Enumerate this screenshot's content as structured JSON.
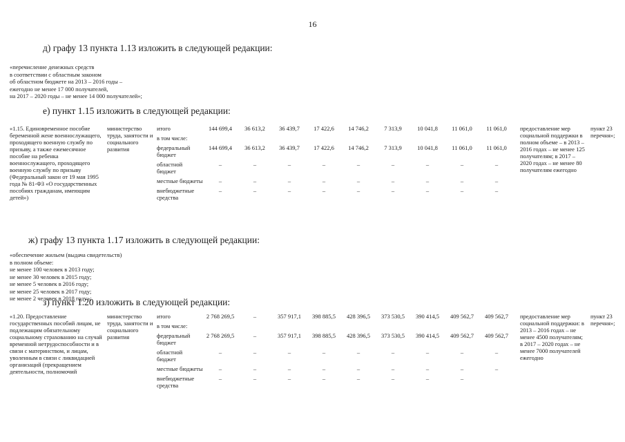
{
  "page_number": "16",
  "headings": {
    "d": "д)  графу 13 пункта 1.13 изложить в следующей редакции:",
    "e": "е)  пункт 1.15 изложить в следующей редакции:",
    "zh": "ж) графу 13 пункта 1.17 изложить в следующей редакции:",
    "z": "з)  пункт 1.20 изложить в следующей редакции:"
  },
  "block_d": {
    "lines": [
      "«перечисление денежных средств",
      "в соответствии с областным законом",
      "об областном бюджете на 2013 – 2016  годы –",
      "ежегодно не менее 17 000 получателей,",
      "на 2017 – 2020 годы – не менее 14 000 получателей»;"
    ]
  },
  "block_zh": {
    "lines": [
      "«обеспечение жильем (выдача свидетельств)",
      "в полном объеме:",
      "не менее 100 человек в 2013 году;",
      "не менее 30 человек в 2015 году;",
      "не менее 5 человек в 2016 году;",
      "не менее 25 человек в 2017 году;",
      "не менее 2 человек в 2018 году»;"
    ]
  },
  "table_1_15": {
    "item": "«1.15. Единовременное пособие беременной жене военнослужащего, проходящего военную службу по призыву, а также ежемесячное пособие на ребенка военнослужащего, проходящего военную службу по призыву (Федеральный закон от 19 мая 1995 года № 81-ФЗ «О государственных пособиях гражданам, имеющим детей»)",
    "ministry": "министерство труда, занятости и социального развития",
    "rows": [
      {
        "label": "итого",
        "values": [
          "144 699,4",
          "36 613,2",
          "36 439,7",
          "17 422,6",
          "14 746,2",
          "7 313,9",
          "10 041,8",
          "11 061,0",
          "11 061,0"
        ]
      },
      {
        "label": "в том числе:",
        "values": []
      },
      {
        "label": "федеральный бюджет",
        "values": [
          "144 699,4",
          "36 613,2",
          "36 439,7",
          "17 422,6",
          "14 746,2",
          "7 313,9",
          "10 041,8",
          "11 061,0",
          "11 061,0"
        ]
      },
      {
        "label": "областной бюджет",
        "values": [
          "–",
          "–",
          "–",
          "–",
          "–",
          "–",
          "–",
          "–",
          "–"
        ]
      },
      {
        "label": "местные бюджеты",
        "values": [
          "–",
          "–",
          "–",
          "–",
          "–",
          "–",
          "–",
          "–",
          "–"
        ]
      },
      {
        "label": "внебюджетные средства",
        "values": [
          "–",
          "–",
          "–",
          "–",
          "–",
          "–",
          "–",
          "–",
          "–"
        ]
      }
    ],
    "note": "предоставление мер социальной поддержки в полном объеме – в 2013 – 2016 годах – не менее 125 получателям; в 2017 –2020 годах – не менее 80 получателям ежегодно",
    "ref": "пункт 23 перечня»;"
  },
  "table_1_20": {
    "item": "«1.20. Предоставление государственных пособий лицам, не подлежащим обязательному социальному страхованию на случай временной нетрудоспособности и в связи с материнством, и лицам, уволенным в связи с ликвидацией организаций (прекращением деятельности, полномочий",
    "ministry": "министерство труда, занятости и социального развития",
    "rows": [
      {
        "label": "итого",
        "values": [
          "2 768 269,5",
          "–",
          "357 917,1",
          "398 885,5",
          "428 396,5",
          "373 530,5",
          "390 414,5",
          "409 562,7",
          "409 562,7"
        ]
      },
      {
        "label": "в том числе:",
        "values": []
      },
      {
        "label": "федеральный бюджет",
        "values": [
          "2 768 269,5",
          "–",
          "357 917,1",
          "398 885,5",
          "428 396,5",
          "373 530,5",
          "390 414,5",
          "409 562,7",
          "409 562,7"
        ]
      },
      {
        "label": "областной бюджет",
        "values": [
          "–",
          "–",
          "–",
          "–",
          "–",
          "–",
          "–",
          "–",
          "–"
        ]
      },
      {
        "label": "местные бюджеты",
        "values": [
          "–",
          "–",
          "–",
          "–",
          "–",
          "–",
          "–",
          "–",
          "–"
        ]
      },
      {
        "label": "внебюджетные средства",
        "values": [
          "–",
          "–",
          "–",
          "–",
          "–",
          "–",
          "–",
          "–",
          ""
        ]
      }
    ],
    "note": "предоставление мер социальной поддержки: в 2013 – 2016 годах – не менее 4500 получателям; в 2017 – 2020 годах – не менее 7000 получателей ежегодно",
    "ref": "пункт 23 перечня»;"
  }
}
